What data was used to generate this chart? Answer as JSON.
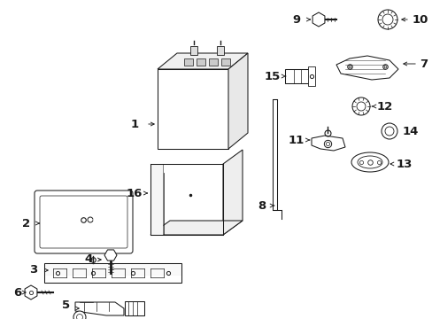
{
  "bg_color": "#ffffff",
  "line_color": "#1a1a1a",
  "figsize": [
    4.89,
    3.6
  ],
  "dpi": 100,
  "lw": 0.75
}
